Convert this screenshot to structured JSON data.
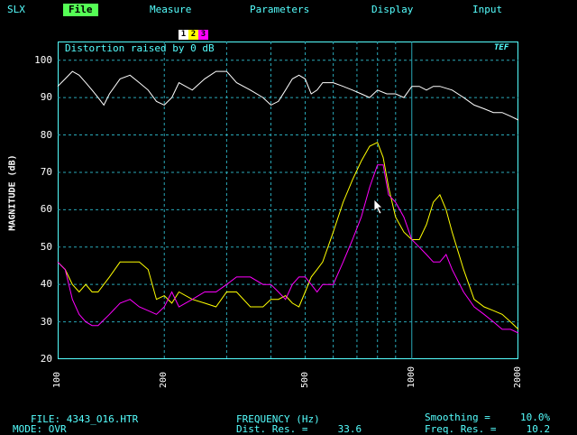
{
  "menu": {
    "items": [
      {
        "label": "SLX",
        "active": false
      },
      {
        "label": "File",
        "active": true
      },
      {
        "label": "Measure",
        "active": false
      },
      {
        "label": "Parameters",
        "active": false
      },
      {
        "label": "Display",
        "active": false
      },
      {
        "label": "Input",
        "active": false
      }
    ]
  },
  "tabs": [
    {
      "label": "1",
      "color": "#ffffff"
    },
    {
      "label": "2",
      "color": "#ffff00"
    },
    {
      "label": "3",
      "color": "#ff00ff"
    }
  ],
  "plot": {
    "distortion_text": "Distortion raised by   0 dB",
    "logo_text": "TEF"
  },
  "chart_data": {
    "type": "line",
    "xlabel": "FREQUENCY (Hz)",
    "ylabel": "MAGNITUDE (dB)",
    "xscale": "log",
    "xlim": [
      100,
      2000
    ],
    "ylim": [
      20,
      105
    ],
    "xticks": [
      100,
      200,
      500,
      1000,
      2000
    ],
    "yticks": [
      20,
      30,
      40,
      50,
      60,
      70,
      80,
      90,
      100
    ],
    "grid": true,
    "series": [
      {
        "name": "1",
        "color": "#ffffff",
        "x": [
          100,
          105,
          110,
          115,
          120,
          125,
          130,
          135,
          140,
          150,
          160,
          170,
          180,
          190,
          200,
          210,
          220,
          240,
          260,
          280,
          300,
          320,
          350,
          380,
          400,
          420,
          440,
          460,
          480,
          500,
          520,
          540,
          560,
          600,
          640,
          680,
          720,
          760,
          800,
          850,
          900,
          950,
          1000,
          1050,
          1100,
          1150,
          1200,
          1300,
          1400,
          1500,
          1600,
          1700,
          1800,
          1900,
          2000
        ],
        "y": [
          93,
          95,
          97,
          96,
          94,
          92,
          90,
          88,
          91,
          95,
          96,
          94,
          92,
          89,
          88,
          90,
          94,
          92,
          95,
          97,
          97,
          94,
          92,
          90,
          88,
          89,
          92,
          95,
          96,
          95,
          91,
          92,
          94,
          94,
          93,
          92,
          91,
          90,
          92,
          91,
          91,
          90,
          93,
          93,
          92,
          93,
          93,
          92,
          90,
          88,
          87,
          86,
          86,
          85,
          84
        ]
      },
      {
        "name": "2",
        "color": "#ffff00",
        "x": [
          100,
          105,
          110,
          115,
          120,
          125,
          130,
          140,
          150,
          160,
          170,
          180,
          190,
          200,
          210,
          220,
          240,
          260,
          280,
          300,
          320,
          350,
          380,
          400,
          420,
          440,
          460,
          480,
          500,
          520,
          540,
          560,
          600,
          640,
          680,
          720,
          760,
          800,
          830,
          860,
          900,
          950,
          1000,
          1050,
          1100,
          1150,
          1200,
          1250,
          1300,
          1400,
          1500,
          1600,
          1700,
          1800,
          1900,
          2000
        ],
        "y": [
          46,
          44,
          40,
          38,
          40,
          38,
          38,
          42,
          46,
          46,
          46,
          44,
          36,
          37,
          35,
          38,
          36,
          35,
          34,
          38,
          38,
          34,
          34,
          36,
          36,
          37,
          35,
          34,
          38,
          42,
          44,
          46,
          54,
          62,
          68,
          73,
          77,
          78,
          74,
          66,
          58,
          54,
          52,
          52,
          56,
          62,
          64,
          60,
          54,
          44,
          36,
          34,
          33,
          32,
          30,
          28
        ]
      },
      {
        "name": "3",
        "color": "#ff00ff",
        "x": [
          100,
          105,
          110,
          115,
          120,
          125,
          130,
          140,
          150,
          160,
          170,
          180,
          190,
          200,
          210,
          220,
          240,
          260,
          280,
          300,
          320,
          350,
          380,
          400,
          420,
          440,
          460,
          480,
          500,
          520,
          540,
          560,
          600,
          640,
          680,
          720,
          760,
          800,
          830,
          860,
          900,
          950,
          1000,
          1050,
          1100,
          1150,
          1200,
          1250,
          1300,
          1400,
          1500,
          1600,
          1700,
          1800,
          1900,
          2000
        ],
        "y": [
          46,
          44,
          36,
          32,
          30,
          29,
          29,
          32,
          35,
          36,
          34,
          33,
          32,
          34,
          38,
          34,
          36,
          38,
          38,
          40,
          42,
          42,
          40,
          40,
          38,
          36,
          40,
          42,
          42,
          40,
          38,
          40,
          40,
          46,
          52,
          58,
          66,
          72,
          72,
          64,
          62,
          58,
          52,
          50,
          48,
          46,
          46,
          48,
          44,
          38,
          34,
          32,
          30,
          28,
          28,
          27
        ]
      }
    ]
  },
  "footer": {
    "file": "FILE: 4343_O16.HTR",
    "mode": "MODE: OVR",
    "freq_label": "FREQUENCY (Hz)",
    "dist_res": "Dist. Res. =     33.6",
    "smoothing": "Smoothing =     10.0%",
    "freq_res": "Freq. Res. =     10.2"
  }
}
